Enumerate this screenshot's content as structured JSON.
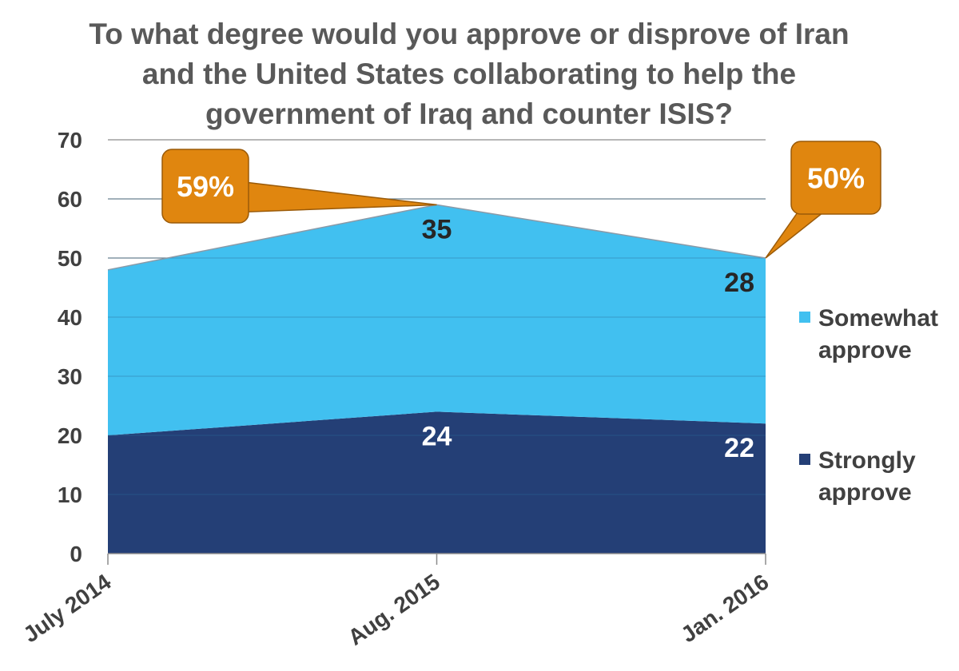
{
  "chart_data": {
    "type": "area",
    "stacked": true,
    "title": "To what degree would you approve or disprove of Iran and the United States collaborating to help the government of Iraq and counter ISIS?",
    "title_lines": [
      "To what degree would you approve or disprove of Iran",
      "and the United States collaborating to help the",
      "government of Iraq and counter ISIS?"
    ],
    "categories": [
      "July 2014",
      "Aug. 2015",
      "Jan. 2016"
    ],
    "series": [
      {
        "name": "Strongly approve",
        "values": [
          20,
          24,
          22
        ],
        "color": "#243F76",
        "data_labels": [
          "",
          "24",
          "22"
        ]
      },
      {
        "name": "Somewhat approve",
        "values": [
          28,
          35,
          28
        ],
        "color": "#41C0F0",
        "data_labels": [
          "",
          "35",
          "28"
        ]
      }
    ],
    "totals": [
      48,
      59,
      50
    ],
    "callouts": [
      {
        "category_index": 1,
        "text": "59%"
      },
      {
        "category_index": 2,
        "text": "50%"
      }
    ],
    "callout_color": "#E0860F",
    "ylim": [
      0,
      70
    ],
    "yticks": [
      "0",
      "10",
      "20",
      "30",
      "40",
      "50",
      "60",
      "70"
    ],
    "grid": true,
    "legend_position": "right",
    "legend": [
      {
        "lines": [
          "Somewhat",
          "approve"
        ],
        "color": "#41C0F0"
      },
      {
        "lines": [
          "Strongly",
          "approve"
        ],
        "color": "#243F76"
      }
    ]
  }
}
